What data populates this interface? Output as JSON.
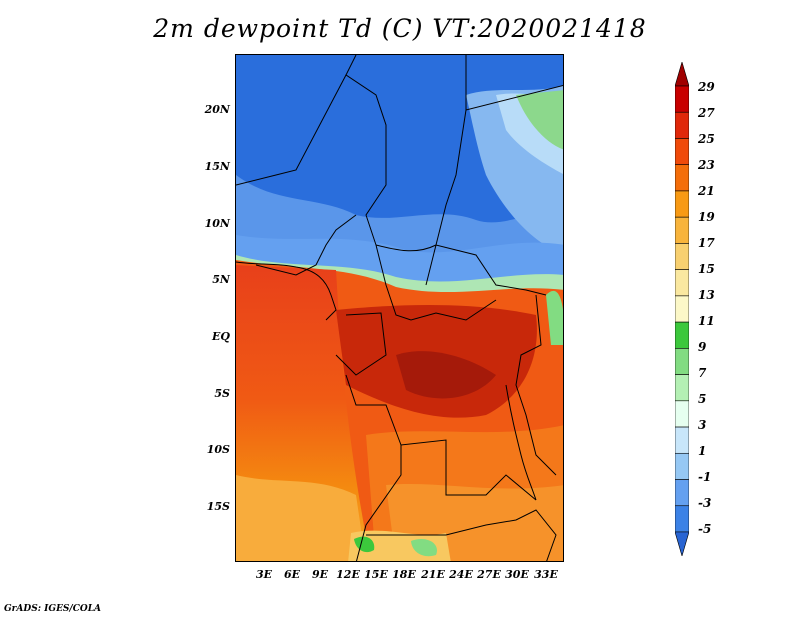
{
  "title": "2m dewpoint Td (C) VT:2020021418",
  "credit": "GrADS: IGES/COLA",
  "latitude_labels": [
    "20N",
    "15N",
    "10N",
    "5N",
    "EQ",
    "5S",
    "10S",
    "15S"
  ],
  "longitude_labels": [
    "3E",
    "6E",
    "9E",
    "12E",
    "15E",
    "18E",
    "21E",
    "24E",
    "27E",
    "30E",
    "33E"
  ],
  "colorbar": {
    "labels": [
      "29",
      "27",
      "25",
      "23",
      "21",
      "19",
      "17",
      "15",
      "13",
      "11",
      "9",
      "7",
      "5",
      "3",
      "1",
      "-1",
      "-3",
      "-5"
    ],
    "colors": [
      "#a00000",
      "#c80000",
      "#e0280a",
      "#f04a0a",
      "#f46e0a",
      "#f89a14",
      "#f8b43c",
      "#f8d070",
      "#fae8a0",
      "#fcf8c8",
      "#3cc83c",
      "#82dc82",
      "#b4f0b4",
      "#e6fff0",
      "#c8e6fa",
      "#96c8f4",
      "#64a0f0",
      "#3c82e6",
      "#2864d2"
    ]
  }
}
